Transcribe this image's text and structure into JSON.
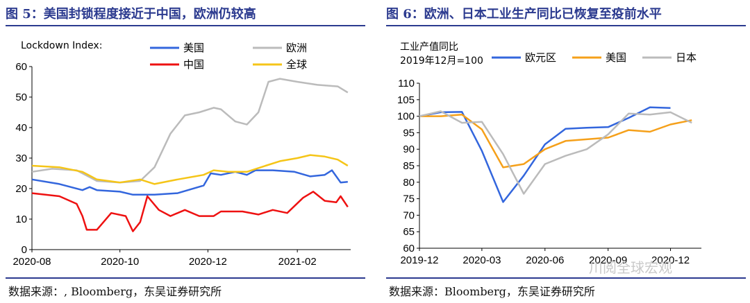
{
  "left": {
    "title": "图 5：美国封锁程度接近于中国，欧洲仍较高",
    "source": "数据来源：, Bloomberg，东吴证券研究所"
  },
  "right": {
    "title": "图 6：欧洲、日本工业生产同比已恢复至疫前水平",
    "source": "数据来源：Bloomberg，东吴证券研究所"
  },
  "watermark": "川阅全球宏观",
  "chart_data": [
    {
      "type": "line",
      "title": "",
      "ylabel": "Lockdown Index:",
      "ylim": [
        0,
        60
      ],
      "yticks": [
        0,
        10,
        20,
        30,
        40,
        50,
        60
      ],
      "xlim": [
        "2020-08-01",
        "2021-03-10"
      ],
      "xticks": [
        "2020-08",
        "2020-10",
        "2020-12",
        "2021-02"
      ],
      "legend_position": "top",
      "series": [
        {
          "name": "美国",
          "color": "#3366dd",
          "points": [
            [
              "2020-08-01",
              23
            ],
            [
              "2020-08-20",
              21.5
            ],
            [
              "2020-09-05",
              19.5
            ],
            [
              "2020-09-10",
              20.5
            ],
            [
              "2020-09-15",
              19.5
            ],
            [
              "2020-10-01",
              19
            ],
            [
              "2020-10-10",
              18
            ],
            [
              "2020-10-25",
              18
            ],
            [
              "2020-11-10",
              18.5
            ],
            [
              "2020-11-28",
              21
            ],
            [
              "2020-12-03",
              25
            ],
            [
              "2020-12-10",
              24.5
            ],
            [
              "2020-12-20",
              25.5
            ],
            [
              "2020-12-28",
              24.5
            ],
            [
              "2021-01-03",
              26
            ],
            [
              "2021-01-15",
              26
            ],
            [
              "2021-01-30",
              25.5
            ],
            [
              "2021-02-10",
              24
            ],
            [
              "2021-02-20",
              24.5
            ],
            [
              "2021-02-25",
              26
            ],
            [
              "2021-03-03",
              22
            ],
            [
              "2021-03-08",
              22.2
            ]
          ]
        },
        {
          "name": "欧洲",
          "color": "#bbbbbb",
          "points": [
            [
              "2020-08-01",
              25.5
            ],
            [
              "2020-08-15",
              26.5
            ],
            [
              "2020-09-01",
              26
            ],
            [
              "2020-09-15",
              22.5
            ],
            [
              "2020-10-01",
              22
            ],
            [
              "2020-10-15",
              22.5
            ],
            [
              "2020-10-25",
              27
            ],
            [
              "2020-11-05",
              38
            ],
            [
              "2020-11-15",
              44
            ],
            [
              "2020-11-25",
              45
            ],
            [
              "2020-12-05",
              46.5
            ],
            [
              "2020-12-10",
              46
            ],
            [
              "2020-12-20",
              42
            ],
            [
              "2020-12-28",
              41
            ],
            [
              "2021-01-05",
              45
            ],
            [
              "2021-01-12",
              55
            ],
            [
              "2021-01-20",
              56
            ],
            [
              "2021-02-01",
              55
            ],
            [
              "2021-02-15",
              54
            ],
            [
              "2021-03-01",
              53.5
            ],
            [
              "2021-03-08",
              51.5
            ]
          ]
        },
        {
          "name": "中国",
          "color": "#ee1111",
          "points": [
            [
              "2020-08-01",
              18.5
            ],
            [
              "2020-08-20",
              17.5
            ],
            [
              "2020-09-01",
              15
            ],
            [
              "2020-09-05",
              11
            ],
            [
              "2020-09-08",
              6.5
            ],
            [
              "2020-09-15",
              6.5
            ],
            [
              "2020-09-25",
              12
            ],
            [
              "2020-10-05",
              11
            ],
            [
              "2020-10-10",
              6
            ],
            [
              "2020-10-15",
              9
            ],
            [
              "2020-10-20",
              17.5
            ],
            [
              "2020-10-28",
              13
            ],
            [
              "2020-11-05",
              11
            ],
            [
              "2020-11-15",
              13
            ],
            [
              "2020-11-25",
              11
            ],
            [
              "2020-12-05",
              11
            ],
            [
              "2020-12-10",
              12.5
            ],
            [
              "2020-12-25",
              12.5
            ],
            [
              "2021-01-05",
              11.5
            ],
            [
              "2021-01-15",
              13
            ],
            [
              "2021-01-25",
              12
            ],
            [
              "2021-02-05",
              17
            ],
            [
              "2021-02-12",
              19
            ],
            [
              "2021-02-20",
              16
            ],
            [
              "2021-02-28",
              15.5
            ],
            [
              "2021-03-03",
              17.5
            ],
            [
              "2021-03-08",
              14
            ]
          ]
        },
        {
          "name": "全球",
          "color": "#f5c518",
          "points": [
            [
              "2020-08-01",
              27.5
            ],
            [
              "2020-08-20",
              27
            ],
            [
              "2020-09-05",
              25.5
            ],
            [
              "2020-09-15",
              23
            ],
            [
              "2020-10-01",
              22
            ],
            [
              "2020-10-15",
              23
            ],
            [
              "2020-10-25",
              21.5
            ],
            [
              "2020-11-10",
              23
            ],
            [
              "2020-11-28",
              24.5
            ],
            [
              "2020-12-05",
              26
            ],
            [
              "2020-12-15",
              25.5
            ],
            [
              "2020-12-28",
              25.5
            ],
            [
              "2021-01-10",
              27.5
            ],
            [
              "2021-01-20",
              29
            ],
            [
              "2021-02-01",
              30
            ],
            [
              "2021-02-10",
              31
            ],
            [
              "2021-02-20",
              30.5
            ],
            [
              "2021-03-01",
              29.5
            ],
            [
              "2021-03-08",
              27.5
            ]
          ]
        }
      ]
    },
    {
      "type": "line",
      "title": "",
      "ylabel": "工业产值同比",
      "ylabel2": "2019年12月=100",
      "ylim": [
        60,
        110
      ],
      "yticks": [
        60,
        65,
        70,
        75,
        80,
        85,
        90,
        95,
        100,
        105,
        110
      ],
      "xlim": [
        "2019-12-01",
        "2021-01-15"
      ],
      "xticks": [
        "2019-12",
        "2020-03",
        "2020-06",
        "2020-09",
        "2020-12"
      ],
      "legend_position": "top",
      "series": [
        {
          "name": "欧元区",
          "color": "#3366dd",
          "points": [
            [
              "2019-12-01",
              100
            ],
            [
              "2020-01-01",
              101.2
            ],
            [
              "2020-02-01",
              101.3
            ],
            [
              "2020-03-01",
              89.5
            ],
            [
              "2020-04-01",
              74
            ],
            [
              "2020-05-01",
              82
            ],
            [
              "2020-06-01",
              91.5
            ],
            [
              "2020-07-01",
              96.2
            ],
            [
              "2020-08-01",
              96.5
            ],
            [
              "2020-09-01",
              96.7
            ],
            [
              "2020-10-01",
              99.5
            ],
            [
              "2020-11-01",
              102.7
            ],
            [
              "2020-12-01",
              102.5
            ]
          ]
        },
        {
          "name": "美国",
          "color": "#f5a01a",
          "points": [
            [
              "2019-12-01",
              100
            ],
            [
              "2020-01-01",
              100
            ],
            [
              "2020-02-01",
              100.5
            ],
            [
              "2020-03-01",
              96
            ],
            [
              "2020-04-01",
              84.5
            ],
            [
              "2020-05-01",
              85.5
            ],
            [
              "2020-06-01",
              90
            ],
            [
              "2020-07-01",
              92.5
            ],
            [
              "2020-08-01",
              93
            ],
            [
              "2020-09-01",
              93.5
            ],
            [
              "2020-10-01",
              95.8
            ],
            [
              "2020-11-01",
              95.3
            ],
            [
              "2020-12-01",
              97.5
            ],
            [
              "2021-01-01",
              98.8
            ]
          ]
        },
        {
          "name": "日本",
          "color": "#bbbbbb",
          "points": [
            [
              "2019-12-01",
              100
            ],
            [
              "2020-01-01",
              101.5
            ],
            [
              "2020-02-01",
              98
            ],
            [
              "2020-03-01",
              98.3
            ],
            [
              "2020-04-01",
              88.5
            ],
            [
              "2020-05-01",
              76.5
            ],
            [
              "2020-06-01",
              85.5
            ],
            [
              "2020-07-01",
              88
            ],
            [
              "2020-08-01",
              90
            ],
            [
              "2020-09-01",
              94.5
            ],
            [
              "2020-10-01",
              100.8
            ],
            [
              "2020-11-01",
              100.5
            ],
            [
              "2020-12-01",
              101.2
            ],
            [
              "2021-01-01",
              98
            ]
          ]
        }
      ]
    }
  ]
}
